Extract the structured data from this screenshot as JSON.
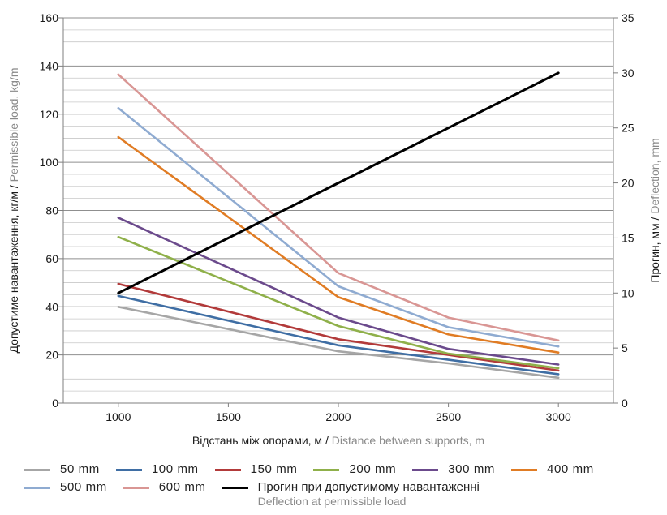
{
  "chart_data": {
    "type": "line",
    "title": "",
    "x": [
      1000,
      2000,
      2500,
      3000
    ],
    "xticks": [
      1000,
      1500,
      2000,
      2500,
      3000
    ],
    "xlim": [
      750,
      3250
    ],
    "xlabel": {
      "primary": "Відстань між опорами, м / ",
      "secondary": "Distance between supports, m"
    },
    "ylabel_left": {
      "primary": "Допустиме навантаження, кг/м / ",
      "secondary": "Permissible load, kg/m"
    },
    "ylabel_right": {
      "primary": "Прогин, мм / ",
      "secondary": "Deflection, mm"
    },
    "ylim_left": [
      0,
      160
    ],
    "yticks_left": [
      0,
      20,
      40,
      60,
      80,
      100,
      120,
      140,
      160
    ],
    "ylim_right": [
      0,
      35
    ],
    "yticks_right": [
      0,
      5,
      10,
      15,
      20,
      25,
      30,
      35
    ],
    "grid": true,
    "series": [
      {
        "name": "50 mm",
        "color": "#a6a6a6",
        "axis": "left",
        "values": [
          40,
          21.5,
          16.5,
          10.5
        ]
      },
      {
        "name": "100 mm",
        "color": "#3f6ea4",
        "axis": "left",
        "values": [
          44.5,
          24,
          18,
          12
        ]
      },
      {
        "name": "150 mm",
        "color": "#b23a3a",
        "axis": "left",
        "values": [
          49.5,
          26.5,
          20,
          13.5
        ]
      },
      {
        "name": "200 mm",
        "color": "#8fb04a",
        "axis": "left",
        "values": [
          69,
          32,
          20.5,
          14.5
        ]
      },
      {
        "name": "300 mm",
        "color": "#6b4a8c",
        "axis": "left",
        "values": [
          77,
          35.5,
          22.5,
          16
        ]
      },
      {
        "name": "400 mm",
        "color": "#e07c24",
        "axis": "left",
        "values": [
          110.5,
          44,
          28.5,
          21
        ]
      },
      {
        "name": "500 mm",
        "color": "#8fabd1",
        "axis": "left",
        "values": [
          122.5,
          48.5,
          31.5,
          23.5
        ]
      },
      {
        "name": "600 mm",
        "color": "#d99694",
        "axis": "left",
        "values": [
          136.5,
          54,
          35.5,
          26
        ]
      },
      {
        "name": "Прогин при допустимому навантаженні",
        "name_sub": "Deflection at permissible load",
        "color": "#000000",
        "axis": "right",
        "values": [
          10,
          20,
          25,
          30
        ]
      }
    ]
  }
}
